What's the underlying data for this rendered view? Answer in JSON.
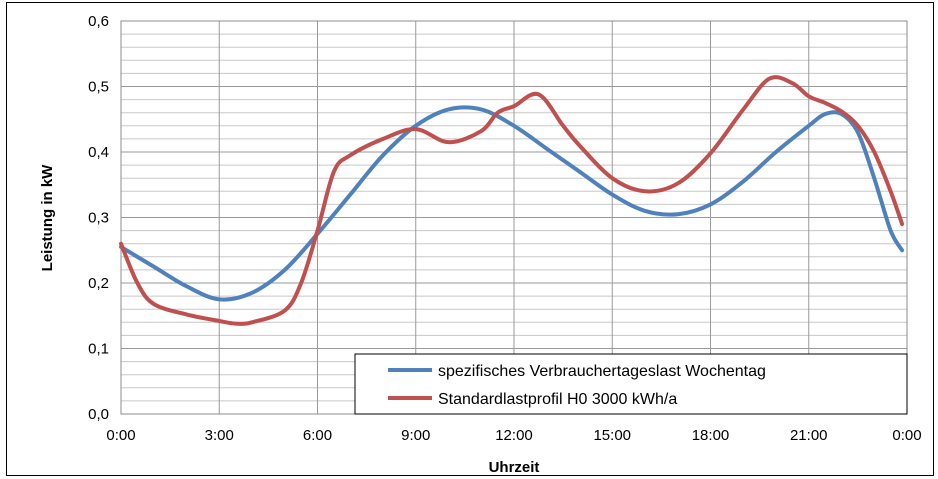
{
  "chart_data": {
    "type": "line",
    "title": "",
    "xlabel": "Uhrzeit",
    "ylabel": "Leistung in kW",
    "x_ticks": [
      "0:00",
      "3:00",
      "6:00",
      "9:00",
      "12:00",
      "15:00",
      "18:00",
      "21:00",
      "0:00"
    ],
    "y_ticks": [
      "0,0",
      "0,1",
      "0,2",
      "0,3",
      "0,4",
      "0,5",
      "0,6"
    ],
    "xlim_hours": [
      0,
      24
    ],
    "ylim": [
      0,
      0.6
    ],
    "grid": true,
    "legend_position": "bottom-right",
    "series": [
      {
        "name": "spezifisches Verbrauchertageslast Wochentag",
        "color": "#4f81bd",
        "x_hours": [
          0,
          1,
          2,
          3,
          4,
          5,
          6,
          7,
          8,
          9,
          10,
          11,
          12,
          13,
          14,
          15,
          16,
          17,
          18,
          19,
          20,
          21,
          21.5,
          22,
          22.5,
          23,
          23.5,
          23.85
        ],
        "values": [
          0.255,
          0.225,
          0.195,
          0.175,
          0.185,
          0.22,
          0.275,
          0.335,
          0.395,
          0.44,
          0.465,
          0.465,
          0.44,
          0.405,
          0.37,
          0.335,
          0.31,
          0.305,
          0.32,
          0.355,
          0.4,
          0.44,
          0.458,
          0.458,
          0.43,
          0.36,
          0.28,
          0.25
        ]
      },
      {
        "name": "Standardlastprofil H0 3000 kWh/a",
        "color": "#c0504d",
        "x_hours": [
          0,
          0.5,
          1,
          2,
          3,
          3.5,
          4,
          5,
          5.5,
          6,
          6.5,
          7,
          8,
          9,
          10,
          11,
          11.5,
          12,
          12.75,
          13.5,
          14,
          15,
          16,
          17,
          18,
          19,
          19.8,
          20.5,
          21,
          21.5,
          22,
          22.5,
          23,
          23.5,
          23.85
        ],
        "values": [
          0.26,
          0.2,
          0.168,
          0.152,
          0.142,
          0.138,
          0.14,
          0.158,
          0.2,
          0.28,
          0.37,
          0.395,
          0.42,
          0.435,
          0.415,
          0.432,
          0.46,
          0.47,
          0.488,
          0.44,
          0.41,
          0.36,
          0.34,
          0.352,
          0.398,
          0.465,
          0.512,
          0.505,
          0.485,
          0.475,
          0.462,
          0.44,
          0.4,
          0.34,
          0.29
        ]
      }
    ]
  }
}
